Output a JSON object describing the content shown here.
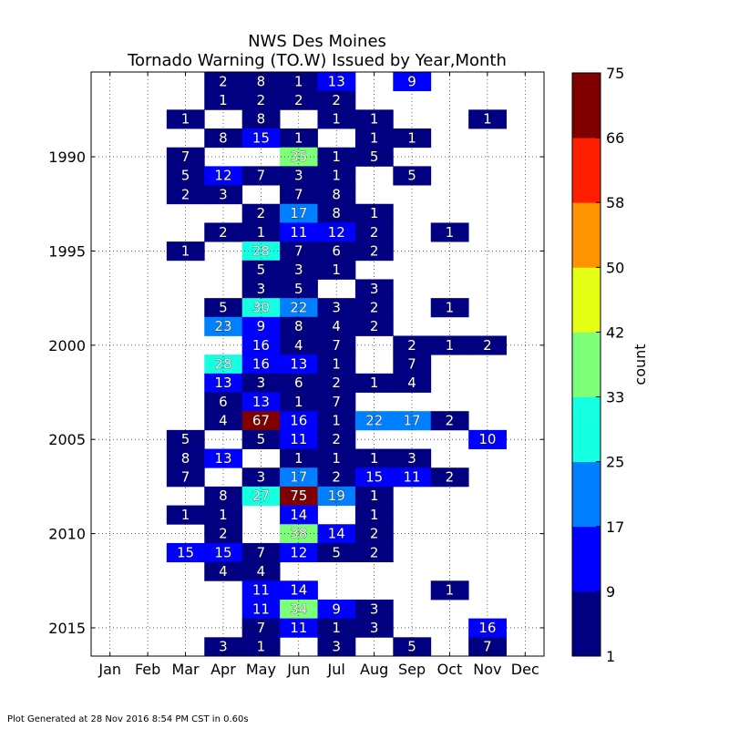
{
  "footer": "Plot Generated at 28 Nov 2016 8:54 PM CST in 0.60s",
  "chart_data": {
    "type": "heatmap",
    "title": "NWS Des Moines",
    "subtitle": "Tornado Warning (TO.W) Issued by Year,Month",
    "months": [
      "Jan",
      "Feb",
      "Mar",
      "Apr",
      "May",
      "Jun",
      "Jul",
      "Aug",
      "Sep",
      "Oct",
      "Nov",
      "Dec"
    ],
    "year_range": [
      1986,
      2016
    ],
    "ytick_years": [
      1990,
      1995,
      2000,
      2005,
      2010,
      2015
    ],
    "grid": true,
    "colorbar": {
      "label": "count",
      "ticks": [
        1,
        9,
        17,
        25,
        33,
        42,
        50,
        58,
        66,
        75
      ],
      "colors": [
        "#000080",
        "#0000ff",
        "#0080ff",
        "#15ffe1",
        "#7dff7a",
        "#e4ff13",
        "#ff9400",
        "#ff1e00",
        "#800000"
      ]
    },
    "rows": [
      {
        "year": 1986,
        "values": [
          null,
          null,
          null,
          2,
          8,
          1,
          13,
          null,
          9,
          null,
          null,
          null
        ]
      },
      {
        "year": 1987,
        "values": [
          null,
          null,
          null,
          1,
          2,
          2,
          2,
          null,
          null,
          null,
          null,
          null
        ]
      },
      {
        "year": 1988,
        "values": [
          null,
          null,
          1,
          null,
          8,
          null,
          1,
          1,
          null,
          null,
          1,
          null
        ]
      },
      {
        "year": 1989,
        "values": [
          null,
          null,
          null,
          8,
          15,
          1,
          null,
          1,
          1,
          null,
          null,
          null
        ]
      },
      {
        "year": 1990,
        "values": [
          null,
          null,
          7,
          null,
          null,
          35,
          1,
          5,
          null,
          null,
          null,
          null
        ]
      },
      {
        "year": 1991,
        "values": [
          null,
          null,
          5,
          12,
          7,
          3,
          1,
          null,
          5,
          null,
          null,
          null
        ]
      },
      {
        "year": 1992,
        "values": [
          null,
          null,
          2,
          3,
          null,
          7,
          8,
          null,
          null,
          null,
          null,
          null
        ]
      },
      {
        "year": 1993,
        "values": [
          null,
          null,
          null,
          null,
          2,
          17,
          8,
          1,
          null,
          null,
          null,
          null
        ]
      },
      {
        "year": 1994,
        "values": [
          null,
          null,
          null,
          2,
          1,
          11,
          12,
          2,
          null,
          1,
          null,
          null
        ]
      },
      {
        "year": 1995,
        "values": [
          null,
          null,
          1,
          null,
          28,
          7,
          6,
          2,
          null,
          null,
          null,
          null
        ]
      },
      {
        "year": 1996,
        "values": [
          null,
          null,
          null,
          null,
          5,
          3,
          1,
          null,
          null,
          null,
          null,
          null
        ]
      },
      {
        "year": 1997,
        "values": [
          null,
          null,
          null,
          null,
          3,
          5,
          null,
          3,
          null,
          null,
          null,
          null
        ]
      },
      {
        "year": 1998,
        "values": [
          null,
          null,
          null,
          5,
          30,
          22,
          3,
          2,
          null,
          1,
          null,
          null
        ]
      },
      {
        "year": 1999,
        "values": [
          null,
          null,
          null,
          23,
          9,
          8,
          4,
          2,
          null,
          null,
          null,
          null
        ]
      },
      {
        "year": 2000,
        "values": [
          null,
          null,
          null,
          null,
          16,
          4,
          7,
          null,
          2,
          1,
          2,
          null
        ]
      },
      {
        "year": 2001,
        "values": [
          null,
          null,
          null,
          28,
          16,
          13,
          1,
          null,
          7,
          null,
          null,
          null
        ]
      },
      {
        "year": 2002,
        "values": [
          null,
          null,
          null,
          13,
          3,
          6,
          2,
          1,
          4,
          null,
          null,
          null
        ]
      },
      {
        "year": 2003,
        "values": [
          null,
          null,
          null,
          6,
          13,
          1,
          7,
          null,
          null,
          null,
          null,
          null
        ]
      },
      {
        "year": 2004,
        "values": [
          null,
          null,
          null,
          4,
          67,
          16,
          1,
          22,
          17,
          2,
          null,
          null
        ]
      },
      {
        "year": 2005,
        "values": [
          null,
          null,
          5,
          null,
          5,
          11,
          2,
          null,
          null,
          null,
          10,
          null
        ]
      },
      {
        "year": 2006,
        "values": [
          null,
          null,
          8,
          13,
          null,
          1,
          1,
          1,
          3,
          null,
          null,
          null
        ]
      },
      {
        "year": 2007,
        "values": [
          null,
          null,
          7,
          null,
          3,
          17,
          2,
          15,
          11,
          2,
          null,
          null
        ]
      },
      {
        "year": 2008,
        "values": [
          null,
          null,
          null,
          8,
          27,
          75,
          19,
          1,
          null,
          null,
          null,
          null
        ]
      },
      {
        "year": 2009,
        "values": [
          null,
          null,
          1,
          1,
          null,
          14,
          null,
          1,
          null,
          null,
          null,
          null
        ]
      },
      {
        "year": 2010,
        "values": [
          null,
          null,
          null,
          2,
          null,
          38,
          14,
          2,
          null,
          null,
          null,
          null
        ]
      },
      {
        "year": 2011,
        "values": [
          null,
          null,
          15,
          15,
          7,
          12,
          5,
          2,
          null,
          null,
          null,
          null
        ]
      },
      {
        "year": 2012,
        "values": [
          null,
          null,
          null,
          4,
          4,
          null,
          null,
          null,
          null,
          null,
          null,
          null
        ]
      },
      {
        "year": 2013,
        "values": [
          null,
          null,
          null,
          null,
          11,
          14,
          null,
          null,
          null,
          1,
          null,
          null
        ]
      },
      {
        "year": 2014,
        "values": [
          null,
          null,
          null,
          null,
          11,
          34,
          9,
          3,
          null,
          null,
          null,
          null
        ]
      },
      {
        "year": 2015,
        "values": [
          null,
          null,
          null,
          null,
          7,
          11,
          1,
          3,
          null,
          null,
          16,
          null
        ]
      },
      {
        "year": 2016,
        "values": [
          null,
          null,
          null,
          3,
          1,
          null,
          3,
          null,
          5,
          null,
          7,
          null
        ]
      }
    ]
  }
}
